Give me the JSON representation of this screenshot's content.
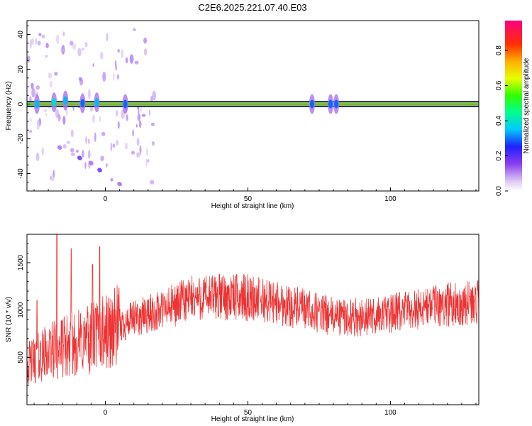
{
  "figure": {
    "title": "C2E6.2025.221.07.40.E03"
  },
  "chart_data": [
    {
      "type": "heatmap",
      "xlabel": "Height of straight line (km)",
      "ylabel": "Frequency (Hz)",
      "xlim": [
        -27.5,
        131
      ],
      "ylim": [
        -50,
        48
      ],
      "xticks": [
        0,
        50,
        100
      ],
      "yticks": [
        -40,
        -20,
        0,
        20,
        40
      ],
      "colorbar": {
        "label": "Normalized spectral amplitude",
        "range": [
          0,
          0.97
        ],
        "ticks": [
          "0.0",
          "0.2",
          "0.4",
          "0.6",
          "0.8"
        ],
        "tick_values": [
          0.0,
          0.2,
          0.4,
          0.6,
          0.8
        ]
      },
      "main_band": {
        "x_start": -27.5,
        "x_end": 131,
        "center_hz": 0,
        "half_width_hz": 1.5
      },
      "features": [
        {
          "x": -24,
          "y": 0,
          "amplitude": 0.35
        },
        {
          "x": -18,
          "y": 1,
          "amplitude": 0.4
        },
        {
          "x": -14,
          "y": 2,
          "amplitude": 0.35
        },
        {
          "x": -8,
          "y": 0.5,
          "amplitude": 0.3
        },
        {
          "x": -3,
          "y": 1,
          "amplitude": 0.35
        },
        {
          "x": 7,
          "y": 0,
          "amplitude": 0.3
        },
        {
          "x": 72.5,
          "y": 0,
          "amplitude": 0.3
        },
        {
          "x": 79,
          "y": 0,
          "amplitude": 0.3
        },
        {
          "x": 81,
          "y": 0,
          "amplitude": 0.3
        }
      ],
      "diagonal_trace": [
        {
          "x": -16,
          "y": -25
        },
        {
          "x": -9,
          "y": -31
        },
        {
          "x": -5,
          "y": -34
        },
        {
          "x": -2,
          "y": -38
        },
        {
          "x": 5,
          "y": -46
        }
      ]
    },
    {
      "type": "line",
      "xlabel": "Height of straight line (km)",
      "ylabel": "SNR (10 * v/v)",
      "xlim": [
        -27.5,
        131
      ],
      "ylim": [
        0,
        1800
      ],
      "xticks": [
        0,
        50,
        100
      ],
      "yticks": [
        500,
        1000,
        1500
      ],
      "color": "#ee3333",
      "trend": [
        {
          "x": -27.5,
          "y": 420
        },
        {
          "x": -20,
          "y": 560
        },
        {
          "x": -10,
          "y": 650
        },
        {
          "x": 0,
          "y": 760
        },
        {
          "x": 10,
          "y": 900
        },
        {
          "x": 20,
          "y": 1000
        },
        {
          "x": 30,
          "y": 1120
        },
        {
          "x": 40,
          "y": 1140
        },
        {
          "x": 50,
          "y": 1130
        },
        {
          "x": 60,
          "y": 1080
        },
        {
          "x": 70,
          "y": 1000
        },
        {
          "x": 80,
          "y": 930
        },
        {
          "x": 90,
          "y": 920
        },
        {
          "x": 100,
          "y": 960
        },
        {
          "x": 110,
          "y": 1020
        },
        {
          "x": 120,
          "y": 1060
        },
        {
          "x": 131,
          "y": 1080
        }
      ],
      "spikes": [
        {
          "x": -17,
          "y": 1800
        },
        {
          "x": -2,
          "y": 1670
        },
        {
          "x": -4.5,
          "y": 1480
        },
        {
          "x": -12,
          "y": 1650
        },
        {
          "x": -24,
          "y": 1100
        }
      ]
    }
  ]
}
